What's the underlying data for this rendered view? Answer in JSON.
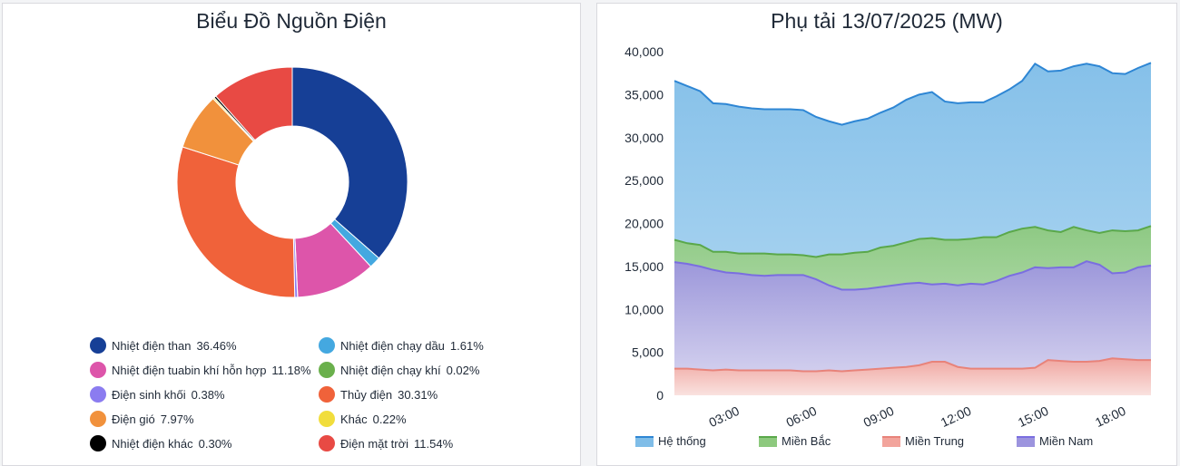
{
  "chart_data": [
    {
      "type": "pie",
      "title": "Biểu Đồ Nguồn Điện",
      "labels": [
        "Nhiệt điện than",
        "Nhiệt điện chạy dầu",
        "Nhiệt điện tuabin khí hỗn hợp",
        "Nhiệt điện chạy khí",
        "Điện sinh khối",
        "Thủy điện",
        "Điện gió",
        "Khác",
        "Nhiệt điện khác",
        "Điện mặt trời"
      ],
      "values": [
        36.46,
        1.61,
        11.18,
        0.02,
        0.38,
        30.31,
        7.97,
        0.22,
        0.3,
        11.54
      ],
      "percent_labels": [
        "36.46%",
        "1.61%",
        "11.18%",
        "0.02%",
        "0.38%",
        "30.31%",
        "7.97%",
        "0.22%",
        "0.30%",
        "11.54%"
      ],
      "colors": [
        "#163f96",
        "#44a8e0",
        "#dd55aa",
        "#6ab04c",
        "#8b7cf0",
        "#f0623a",
        "#f1913c",
        "#f1dd3c",
        "#000000",
        "#e84a44"
      ],
      "legend_position": "bottom"
    },
    {
      "type": "area",
      "title": "Phụ tải 13/07/2025 (MW)",
      "x_tick_labels": [
        "03:00",
        "06:00",
        "09:00",
        "12:00",
        "15:00",
        "18:00"
      ],
      "x_tick_index": [
        4,
        10,
        16,
        22,
        28,
        34
      ],
      "y_tick_labels": [
        "0",
        "5,000",
        "10,000",
        "15,000",
        "20,000",
        "25,000",
        "30,000",
        "35,000",
        "40,000"
      ],
      "ylim": [
        0,
        40000
      ],
      "series": [
        {
          "name": "Hệ thống",
          "color": "#2e86d4",
          "fill_top": "#7fbde8",
          "fill_bottom": "#b3d9f2",
          "values": [
            36600,
            36000,
            35400,
            34000,
            33900,
            33600,
            33400,
            33300,
            33300,
            33300,
            33200,
            32400,
            31900,
            31500,
            31900,
            32200,
            32900,
            33500,
            34400,
            35000,
            35300,
            34200,
            34000,
            34100,
            34100,
            34800,
            35600,
            36600,
            38600,
            37700,
            37800,
            38300,
            38600,
            38300,
            37500,
            37400,
            38100,
            38700
          ]
        },
        {
          "name": "Miền Bắc",
          "color": "#5aa84a",
          "fill_top": "#8dc97e",
          "fill_bottom": "#cfe8c6",
          "values": [
            18100,
            17700,
            17500,
            16700,
            16700,
            16500,
            16500,
            16500,
            16400,
            16400,
            16300,
            16100,
            16400,
            16400,
            16600,
            16700,
            17200,
            17400,
            17800,
            18200,
            18300,
            18100,
            18100,
            18200,
            18400,
            18400,
            19000,
            19400,
            19600,
            19200,
            19000,
            19600,
            19200,
            18900,
            19200,
            19100,
            19200,
            19700
          ]
        },
        {
          "name": "Miền Trung",
          "color": "#e8837a",
          "fill_top": "#f2a49c",
          "fill_bottom": "#fbe2de",
          "values": [
            3100,
            3100,
            3000,
            2900,
            3000,
            2900,
            2900,
            2900,
            2900,
            2900,
            2800,
            2800,
            2900,
            2800,
            2900,
            3000,
            3100,
            3200,
            3300,
            3500,
            3900,
            3900,
            3300,
            3100,
            3100,
            3100,
            3100,
            3100,
            3200,
            4100,
            4000,
            3900,
            3900,
            4000,
            4300,
            4200,
            4100,
            4100
          ]
        },
        {
          "name": "Miền Nam",
          "color": "#7a6ee0",
          "fill_top": "#9c94de",
          "fill_bottom": "#ddd9f4",
          "values": [
            15500,
            15300,
            15000,
            14600,
            14300,
            14200,
            14000,
            13900,
            14000,
            14000,
            14000,
            13500,
            12800,
            12300,
            12300,
            12400,
            12600,
            12800,
            13000,
            13100,
            12900,
            13000,
            12800,
            13000,
            12900,
            13300,
            13900,
            14300,
            14900,
            14800,
            14900,
            14900,
            15600,
            15200,
            14200,
            14300,
            14900,
            15100
          ]
        }
      ]
    }
  ]
}
